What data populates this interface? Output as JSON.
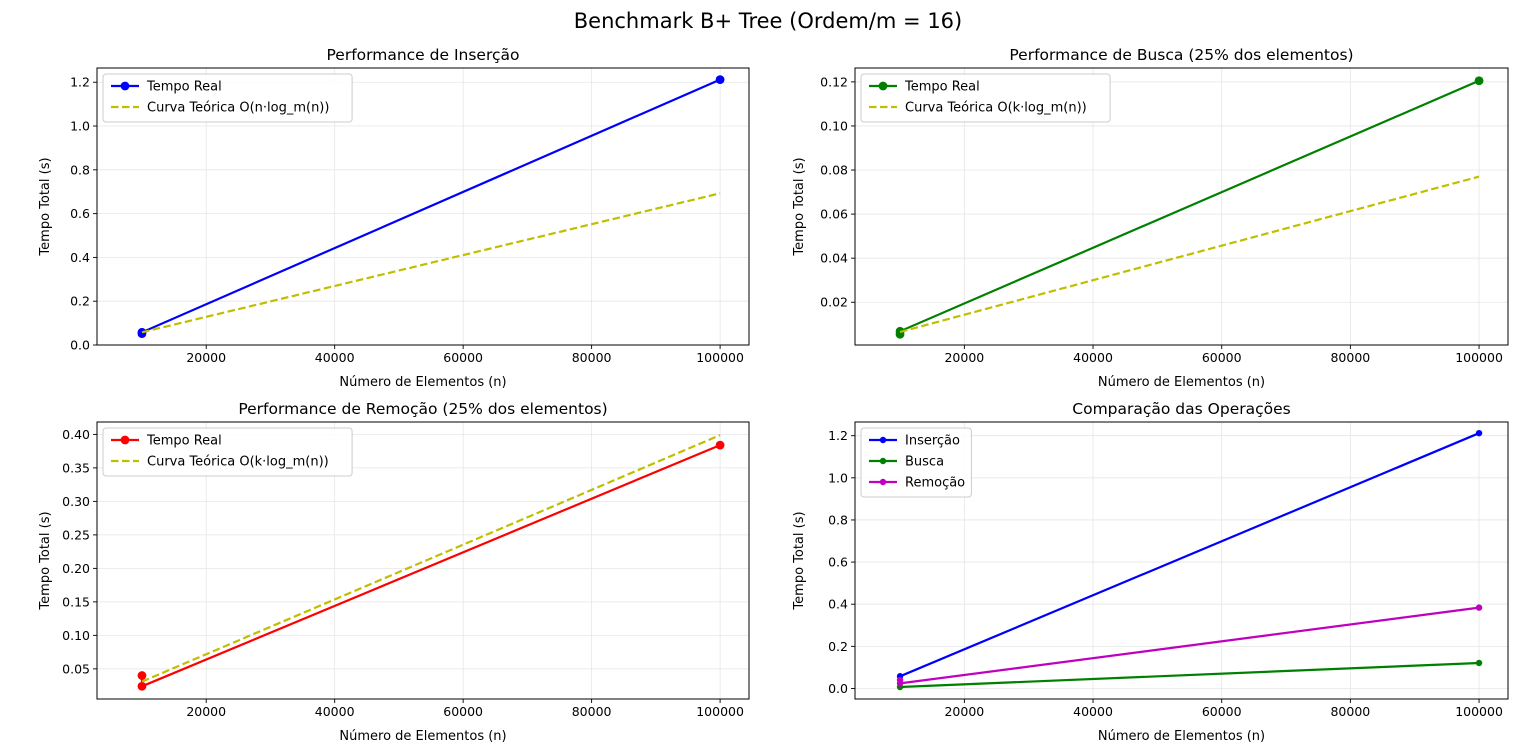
{
  "figure": {
    "title": "Benchmark B+ Tree (Ordem/m = 16)"
  },
  "chart_data": [
    {
      "type": "line",
      "title": "Performance de Inserção",
      "xlabel": "Número de Elementos (n)",
      "ylabel": "Tempo Total (s)",
      "xlim": [
        3000,
        104500
      ],
      "ylim": [
        0,
        1.265
      ],
      "xticks": [
        20000,
        40000,
        60000,
        80000,
        100000
      ],
      "yticks": [
        0.0,
        0.2,
        0.4,
        0.6,
        0.8,
        1.0,
        1.2
      ],
      "ytick_labels": [
        "0.0",
        "0.2",
        "0.4",
        "0.6",
        "0.8",
        "1.0",
        "1.2"
      ],
      "grid": true,
      "legend_position": "top-left",
      "series": [
        {
          "name": "Tempo Real",
          "style": "solid-marker",
          "color": "#0000ff",
          "x": [
            10000,
            10000,
            100000
          ],
          "y": [
            0.052,
            0.058,
            1.212
          ]
        },
        {
          "name": "Curva Teórica O(n·log_m(n))",
          "style": "dashed",
          "color": "#bfbf00",
          "x": [
            10000,
            100000
          ],
          "y": [
            0.058,
            0.693
          ]
        }
      ]
    },
    {
      "type": "line",
      "title": "Performance de Busca (25% dos elementos)",
      "xlabel": "Número de Elementos (n)",
      "ylabel": "Tempo Total (s)",
      "xlim": [
        3000,
        104500
      ],
      "ylim": [
        0.0006,
        0.1263
      ],
      "xticks": [
        20000,
        40000,
        60000,
        80000,
        100000
      ],
      "yticks": [
        0.02,
        0.04,
        0.06,
        0.08,
        0.1,
        0.12
      ],
      "ytick_labels": [
        "0.02",
        "0.04",
        "0.06",
        "0.08",
        "0.10",
        "0.12"
      ],
      "grid": true,
      "legend_position": "top-left",
      "series": [
        {
          "name": "Tempo Real",
          "style": "solid-marker",
          "color": "#008000",
          "x": [
            10000,
            10000,
            100000
          ],
          "y": [
            0.0055,
            0.0068,
            0.1205
          ]
        },
        {
          "name": "Curva Teórica O(k·log_m(n))",
          "style": "dashed",
          "color": "#bfbf00",
          "x": [
            10000,
            100000
          ],
          "y": [
            0.0065,
            0.077
          ]
        }
      ]
    },
    {
      "type": "line",
      "title": "Performance de Remoção (25% dos elementos)",
      "xlabel": "Número de Elementos (n)",
      "ylabel": "Tempo Total (s)",
      "xlim": [
        3000,
        104500
      ],
      "ylim": [
        0.005,
        0.4185
      ],
      "xticks": [
        20000,
        40000,
        60000,
        80000,
        100000
      ],
      "yticks": [
        0.05,
        0.1,
        0.15,
        0.2,
        0.25,
        0.3,
        0.35,
        0.4
      ],
      "ytick_labels": [
        "0.05",
        "0.10",
        "0.15",
        "0.20",
        "0.25",
        "0.30",
        "0.35",
        "0.40"
      ],
      "grid": true,
      "legend_position": "top-left",
      "series": [
        {
          "name": "Tempo Real",
          "style": "solid-marker",
          "color": "#ff0000",
          "x": [
            10000,
            10000,
            100000
          ],
          "y": [
            0.04,
            0.024,
            0.384
          ]
        },
        {
          "name": "Curva Teórica O(k·log_m(n))",
          "style": "dashed",
          "color": "#bfbf00",
          "x": [
            10000,
            100000
          ],
          "y": [
            0.031,
            0.399
          ]
        }
      ]
    },
    {
      "type": "line",
      "title": "Comparação das Operações",
      "xlabel": "Número de Elementos (n)",
      "ylabel": "Tempo Total (s)",
      "xlim": [
        3000,
        104500
      ],
      "ylim": [
        -0.05,
        1.265
      ],
      "xticks": [
        20000,
        40000,
        60000,
        80000,
        100000
      ],
      "yticks": [
        0.0,
        0.2,
        0.4,
        0.6,
        0.8,
        1.0,
        1.2
      ],
      "ytick_labels": [
        "0.0",
        "0.2",
        "0.4",
        "0.6",
        "0.8",
        "1.0",
        "1.2"
      ],
      "grid": true,
      "legend_position": "top-left",
      "series": [
        {
          "name": "Inserção",
          "style": "solid-small-marker",
          "color": "#0000ff",
          "x": [
            10000,
            100000
          ],
          "y": [
            0.058,
            1.212
          ]
        },
        {
          "name": "Busca",
          "style": "solid-small-marker",
          "color": "#008000",
          "x": [
            10000,
            100000
          ],
          "y": [
            0.007,
            0.121
          ]
        },
        {
          "name": "Remoção",
          "style": "solid-small-marker",
          "color": "#bf00bf",
          "x": [
            10000,
            10000,
            100000
          ],
          "y": [
            0.04,
            0.024,
            0.384
          ]
        }
      ]
    }
  ]
}
